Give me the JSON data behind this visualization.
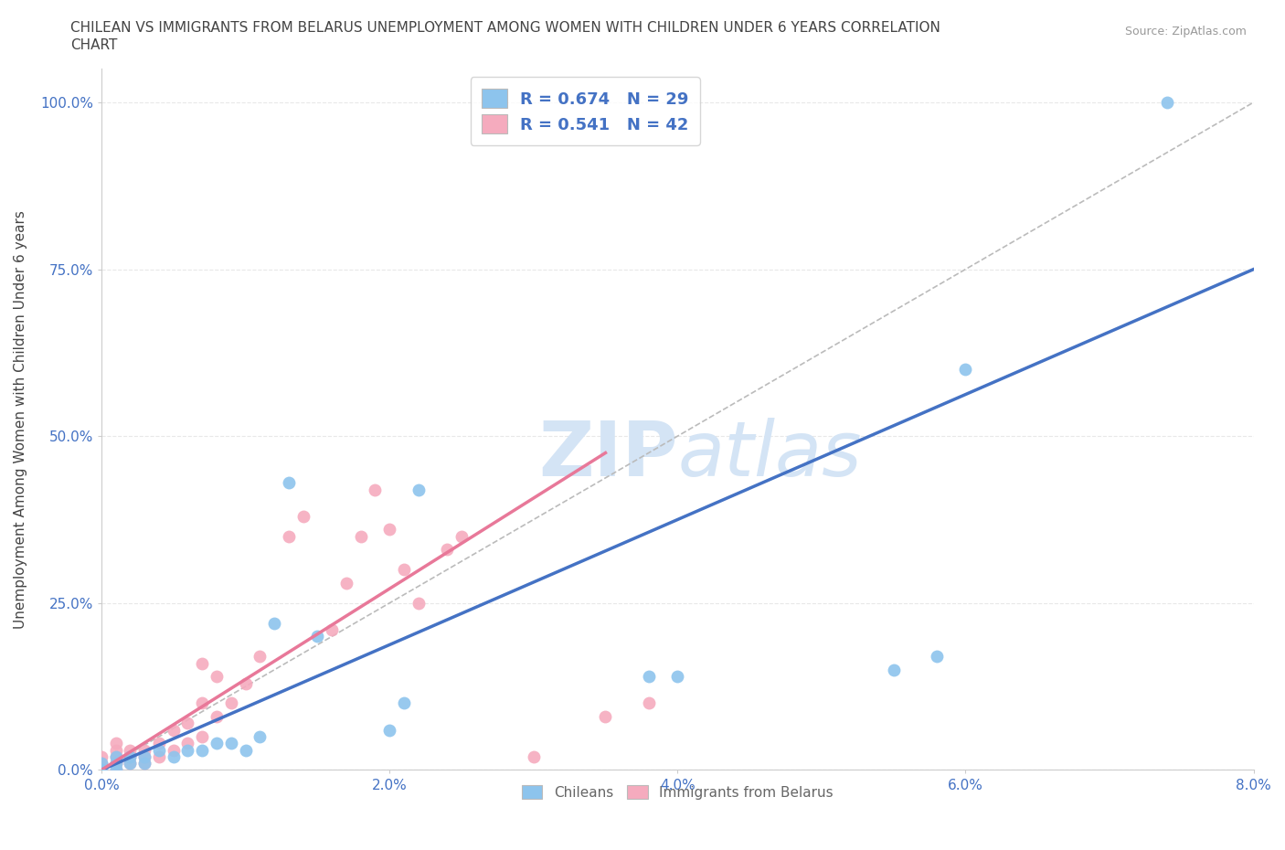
{
  "title_line1": "CHILEAN VS IMMIGRANTS FROM BELARUS UNEMPLOYMENT AMONG WOMEN WITH CHILDREN UNDER 6 YEARS CORRELATION",
  "title_line2": "CHART",
  "source_text": "Source: ZipAtlas.com",
  "ylabel": "Unemployment Among Women with Children Under 6 years",
  "xlim": [
    0.0,
    0.08
  ],
  "ylim": [
    0.0,
    1.05
  ],
  "xticks": [
    0.0,
    0.02,
    0.04,
    0.06,
    0.08
  ],
  "xticklabels": [
    "0.0%",
    "2.0%",
    "4.0%",
    "6.0%",
    "8.0%"
  ],
  "yticks": [
    0.0,
    0.25,
    0.5,
    0.75,
    1.0
  ],
  "yticklabels": [
    "0.0%",
    "25.0%",
    "50.0%",
    "75.0%",
    "100.0%"
  ],
  "chilean_color": "#8DC4ED",
  "belarus_color": "#F5ABBE",
  "line_color_chilean": "#4472C4",
  "line_color_belarus": "#E87899",
  "ref_line_color": "#BBBBBB",
  "R_chilean": 0.674,
  "N_chilean": 29,
  "R_belarus": 0.541,
  "N_belarus": 42,
  "chilean_line_x0": 0.0,
  "chilean_line_y0": 0.0,
  "chilean_line_x1": 0.08,
  "chilean_line_y1": 0.75,
  "belarus_line_x0": 0.0,
  "belarus_line_y0": 0.0,
  "belarus_line_x1": 0.035,
  "belarus_line_y1": 0.475,
  "chileans_x": [
    0.0,
    0.0,
    0.001,
    0.001,
    0.001,
    0.002,
    0.002,
    0.003,
    0.003,
    0.004,
    0.005,
    0.006,
    0.007,
    0.008,
    0.009,
    0.01,
    0.011,
    0.012,
    0.013,
    0.015,
    0.02,
    0.021,
    0.022,
    0.038,
    0.04,
    0.055,
    0.058,
    0.06,
    0.074
  ],
  "chileans_y": [
    0.0,
    0.01,
    0.0,
    0.01,
    0.02,
    0.01,
    0.02,
    0.01,
    0.02,
    0.03,
    0.02,
    0.03,
    0.03,
    0.04,
    0.04,
    0.03,
    0.05,
    0.22,
    0.43,
    0.2,
    0.06,
    0.1,
    0.42,
    0.14,
    0.14,
    0.15,
    0.17,
    0.6,
    1.0
  ],
  "belarus_x": [
    0.0,
    0.0,
    0.0,
    0.001,
    0.001,
    0.001,
    0.001,
    0.001,
    0.002,
    0.002,
    0.002,
    0.003,
    0.003,
    0.003,
    0.004,
    0.004,
    0.005,
    0.005,
    0.006,
    0.006,
    0.007,
    0.007,
    0.007,
    0.008,
    0.008,
    0.009,
    0.01,
    0.011,
    0.013,
    0.014,
    0.016,
    0.017,
    0.018,
    0.019,
    0.02,
    0.021,
    0.022,
    0.024,
    0.025,
    0.03,
    0.035,
    0.038
  ],
  "belarus_y": [
    0.0,
    0.01,
    0.02,
    0.0,
    0.01,
    0.02,
    0.03,
    0.04,
    0.01,
    0.02,
    0.03,
    0.01,
    0.02,
    0.03,
    0.02,
    0.04,
    0.03,
    0.06,
    0.04,
    0.07,
    0.05,
    0.1,
    0.16,
    0.08,
    0.14,
    0.1,
    0.13,
    0.17,
    0.35,
    0.38,
    0.21,
    0.28,
    0.35,
    0.42,
    0.36,
    0.3,
    0.25,
    0.33,
    0.35,
    0.02,
    0.08,
    0.1
  ],
  "background_color": "#FFFFFF",
  "grid_color": "#E8E8E8",
  "tick_color": "#4472C4",
  "title_color": "#444444",
  "ylabel_color": "#444444",
  "watermark_color": "#D4E4F5",
  "legend_R_color": "#4472C4"
}
